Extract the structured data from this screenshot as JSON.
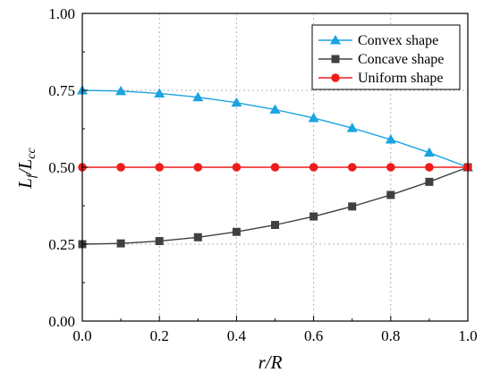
{
  "chart_data": {
    "type": "line",
    "xlabel": {
      "main": "r",
      "sep": "/",
      "second": "R"
    },
    "ylabel": {
      "main": "L",
      "sub": "f",
      "sep": "/",
      "second": "L",
      "second_sub": "cc"
    },
    "xlim": [
      0,
      1.0
    ],
    "ylim": [
      0,
      1.0
    ],
    "x_ticks": [
      "0.0",
      "0.2",
      "0.4",
      "0.6",
      "0.8",
      "1.0"
    ],
    "y_ticks": [
      "0.00",
      "0.25",
      "0.50",
      "0.75",
      "1.00"
    ],
    "grid": true,
    "legend_position": "top-right",
    "x": [
      0.0,
      0.1,
      0.2,
      0.3,
      0.4,
      0.5,
      0.6,
      0.7,
      0.8,
      0.9,
      1.0
    ],
    "series": [
      {
        "name": "Convex shape",
        "marker": "triangle",
        "color": "#1aa3e0",
        "values": [
          0.75,
          0.7475,
          0.74,
          0.7275,
          0.71,
          0.6875,
          0.66,
          0.6275,
          0.59,
          0.5475,
          0.5
        ]
      },
      {
        "name": "Concave shape",
        "marker": "square",
        "color": "#404040",
        "values": [
          0.25,
          0.2525,
          0.26,
          0.2725,
          0.29,
          0.3125,
          0.34,
          0.3725,
          0.41,
          0.4525,
          0.5
        ]
      },
      {
        "name": "Uniform shape",
        "marker": "circle",
        "color": "#ee1c1c",
        "values": [
          0.5,
          0.5,
          0.5,
          0.5,
          0.5,
          0.5,
          0.5,
          0.5,
          0.5,
          0.5,
          0.5
        ]
      }
    ]
  }
}
